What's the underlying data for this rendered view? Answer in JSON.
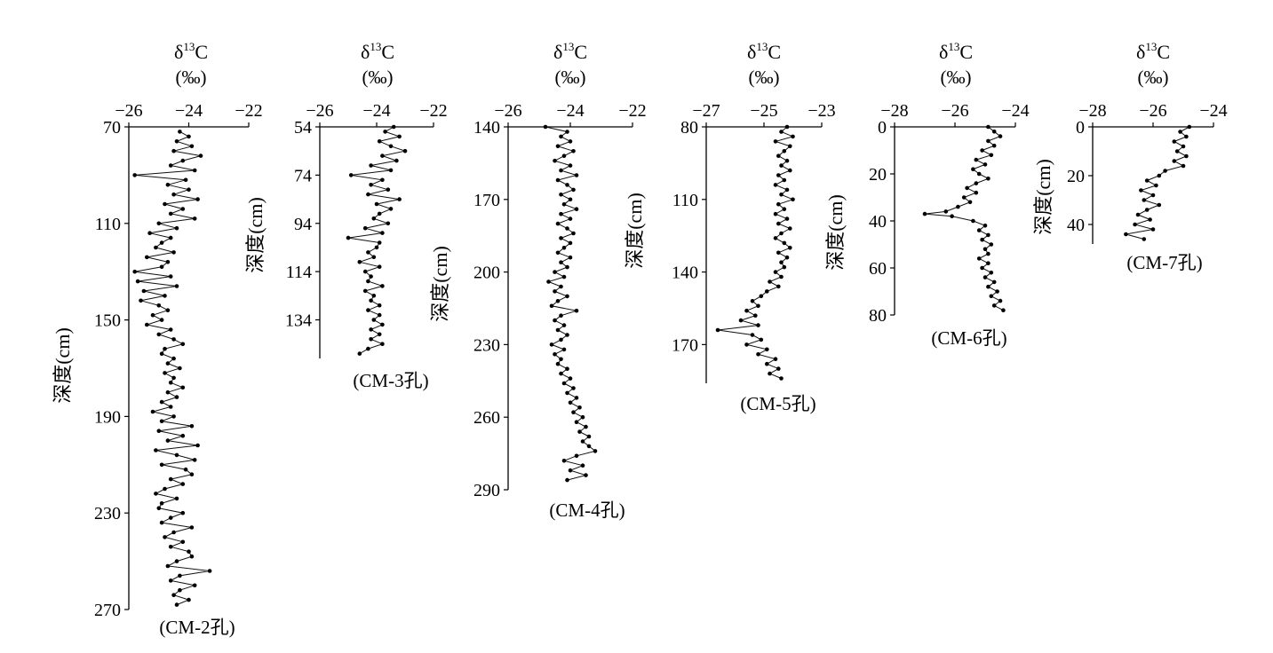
{
  "chart_data": [
    {
      "type": "line",
      "title": "δ13C",
      "unit": "(‰)",
      "ylabel": "深度(cm)",
      "caption": "(CM-2孔)",
      "x_ticks": [
        -26,
        -24,
        -22
      ],
      "y_ticks": [
        70,
        110,
        150,
        190,
        230,
        270
      ],
      "xlim": [
        -26,
        -22
      ],
      "ylim": [
        70,
        270
      ],
      "depth": [
        72,
        74,
        76,
        78,
        80,
        82,
        84,
        86,
        88,
        90,
        92,
        94,
        96,
        98,
        100,
        102,
        104,
        106,
        108,
        110,
        112,
        114,
        116,
        118,
        120,
        122,
        124,
        126,
        128,
        130,
        132,
        134,
        136,
        138,
        140,
        142,
        144,
        146,
        148,
        150,
        152,
        154,
        156,
        158,
        160,
        162,
        164,
        166,
        168,
        170,
        172,
        174,
        176,
        178,
        180,
        182,
        184,
        186,
        188,
        190,
        192,
        194,
        196,
        198,
        200,
        202,
        204,
        206,
        208,
        210,
        212,
        214,
        216,
        218,
        220,
        222,
        224,
        226,
        228,
        230,
        232,
        234,
        236,
        238,
        240,
        242,
        244,
        246,
        248,
        250,
        252,
        254,
        256,
        258,
        260,
        262,
        264,
        266,
        268
      ],
      "values": [
        -24.3,
        -24.0,
        -24.4,
        -23.9,
        -24.5,
        -23.6,
        -24.2,
        -24.6,
        -23.8,
        -25.8,
        -24.1,
        -24.7,
        -24.0,
        -24.5,
        -23.7,
        -24.8,
        -24.2,
        -24.6,
        -23.8,
        -25.0,
        -24.4,
        -25.3,
        -24.6,
        -24.9,
        -25.1,
        -24.5,
        -25.4,
        -24.7,
        -24.9,
        -25.8,
        -24.6,
        -25.7,
        -24.4,
        -25.5,
        -24.8,
        -25.6,
        -25.0,
        -24.7,
        -25.2,
        -24.9,
        -25.4,
        -24.6,
        -25.0,
        -24.5,
        -24.2,
        -24.8,
        -24.9,
        -24.5,
        -24.7,
        -24.3,
        -24.8,
        -24.5,
        -24.6,
        -24.2,
        -24.7,
        -24.4,
        -24.9,
        -24.6,
        -25.2,
        -24.5,
        -24.9,
        -23.9,
        -25.0,
        -24.2,
        -24.7,
        -23.7,
        -25.1,
        -24.4,
        -23.8,
        -24.9,
        -24.1,
        -23.9,
        -24.6,
        -24.2,
        -24.8,
        -25.1,
        -24.4,
        -24.9,
        -25.0,
        -24.2,
        -24.6,
        -24.9,
        -23.9,
        -24.5,
        -24.8,
        -24.2,
        -24.6,
        -24.0,
        -23.9,
        -24.4,
        -24.7,
        -23.3,
        -24.3,
        -24.6,
        -23.8,
        -24.3,
        -24.5,
        -24.0,
        -24.4
      ]
    },
    {
      "type": "line",
      "title": "δ13C",
      "unit": "(‰)",
      "ylabel": "深度(cm)",
      "caption": "(CM-3孔)",
      "x_ticks": [
        -26,
        -24,
        -22
      ],
      "y_ticks": [
        54,
        74,
        94,
        114,
        134
      ],
      "xlim": [
        -26,
        -22
      ],
      "ylim": [
        54,
        150
      ],
      "depth": [
        54,
        56,
        58,
        60,
        62,
        64,
        66,
        68,
        70,
        72,
        74,
        76,
        78,
        80,
        82,
        84,
        86,
        88,
        90,
        92,
        94,
        96,
        98,
        100,
        102,
        104,
        106,
        108,
        110,
        112,
        114,
        116,
        118,
        120,
        122,
        124,
        126,
        128,
        130,
        132,
        134,
        136,
        138,
        140,
        142,
        144,
        146,
        148
      ],
      "values": [
        -23.4,
        -23.7,
        -23.2,
        -23.9,
        -23.5,
        -23.0,
        -23.8,
        -23.3,
        -24.2,
        -23.5,
        -24.9,
        -23.8,
        -24.2,
        -23.6,
        -24.3,
        -23.2,
        -24.0,
        -23.5,
        -23.9,
        -24.1,
        -23.6,
        -24.4,
        -23.8,
        -25.0,
        -23.9,
        -24.0,
        -24.3,
        -24.1,
        -24.6,
        -23.9,
        -24.4,
        -24.2,
        -24.3,
        -23.8,
        -24.4,
        -24.1,
        -24.2,
        -23.9,
        -24.3,
        -23.9,
        -24.1,
        -23.8,
        -24.2,
        -23.9,
        -24.2,
        -23.8,
        -24.3,
        -24.6
      ]
    },
    {
      "type": "line",
      "title": "δ13C",
      "unit": "(‰)",
      "ylabel": "深度(cm)",
      "caption": "(CM-4孔)",
      "x_ticks": [
        -26,
        -24,
        -22
      ],
      "y_ticks": [
        140,
        170,
        200,
        230,
        260,
        290
      ],
      "xlim": [
        -26,
        -22
      ],
      "ylim": [
        140,
        290
      ],
      "depth": [
        140,
        142,
        144,
        146,
        148,
        150,
        152,
        154,
        156,
        158,
        160,
        162,
        164,
        166,
        168,
        170,
        172,
        174,
        176,
        178,
        180,
        182,
        184,
        186,
        188,
        190,
        192,
        194,
        196,
        198,
        200,
        202,
        204,
        206,
        208,
        210,
        212,
        214,
        216,
        218,
        220,
        222,
        224,
        226,
        228,
        230,
        232,
        234,
        236,
        238,
        240,
        242,
        244,
        246,
        248,
        250,
        252,
        254,
        256,
        258,
        260,
        262,
        264,
        266,
        268,
        270,
        272,
        274,
        276,
        278,
        280,
        282,
        284,
        286
      ],
      "values": [
        -24.8,
        -24.1,
        -24.3,
        -24.0,
        -24.4,
        -23.9,
        -24.2,
        -24.5,
        -24.0,
        -24.3,
        -23.8,
        -24.4,
        -24.1,
        -23.9,
        -24.3,
        -24.0,
        -24.2,
        -23.8,
        -24.3,
        -24.0,
        -24.4,
        -24.1,
        -23.9,
        -24.3,
        -24.0,
        -24.2,
        -24.4,
        -24.0,
        -24.3,
        -24.1,
        -24.5,
        -24.2,
        -24.7,
        -24.3,
        -24.5,
        -24.1,
        -24.4,
        -24.6,
        -23.8,
        -24.3,
        -24.5,
        -24.2,
        -24.4,
        -24.1,
        -24.3,
        -24.6,
        -24.2,
        -24.5,
        -24.3,
        -24.4,
        -24.1,
        -24.3,
        -24.0,
        -24.2,
        -23.9,
        -24.1,
        -23.8,
        -24.0,
        -23.7,
        -23.9,
        -23.6,
        -23.8,
        -23.5,
        -23.7,
        -23.4,
        -23.6,
        -23.4,
        -23.2,
        -23.8,
        -24.2,
        -23.6,
        -24.0,
        -23.5,
        -24.1
      ]
    },
    {
      "type": "line",
      "title": "δ13C",
      "unit": "(‰)",
      "ylabel": "深度(cm)",
      "caption": "(CM-5孔)",
      "x_ticks": [
        -27,
        -25,
        -23
      ],
      "y_ticks": [
        80,
        110,
        140,
        170
      ],
      "xlim": [
        -27,
        -23
      ],
      "ylim": [
        80,
        186
      ],
      "depth": [
        80,
        82,
        84,
        86,
        88,
        90,
        92,
        94,
        96,
        98,
        100,
        102,
        104,
        106,
        108,
        110,
        112,
        114,
        116,
        118,
        120,
        122,
        124,
        126,
        128,
        130,
        132,
        134,
        136,
        138,
        140,
        142,
        144,
        146,
        148,
        150,
        152,
        154,
        156,
        158,
        160,
        162,
        164,
        166,
        168,
        170,
        172,
        174,
        176,
        178,
        180,
        182,
        184
      ],
      "values": [
        -24.2,
        -24.4,
        -24.0,
        -24.6,
        -24.1,
        -24.3,
        -24.5,
        -24.2,
        -24.4,
        -24.1,
        -24.5,
        -24.3,
        -24.6,
        -24.2,
        -24.4,
        -24.0,
        -24.5,
        -24.3,
        -24.6,
        -24.2,
        -24.5,
        -24.1,
        -24.4,
        -24.6,
        -24.3,
        -24.1,
        -24.5,
        -24.2,
        -24.4,
        -24.3,
        -24.6,
        -24.4,
        -24.8,
        -24.5,
        -24.9,
        -25.1,
        -25.4,
        -25.2,
        -25.6,
        -25.3,
        -25.8,
        -25.2,
        -26.6,
        -25.4,
        -25.1,
        -25.6,
        -24.9,
        -25.2,
        -24.6,
        -24.9,
        -24.5,
        -24.8,
        -24.4
      ]
    },
    {
      "type": "line",
      "title": "δ13C",
      "unit": "(‰)",
      "ylabel": "深度(cm)",
      "caption": "(CM-6孔)",
      "x_ticks": [
        -28,
        -26,
        -24
      ],
      "y_ticks": [
        0,
        20,
        40,
        60,
        80
      ],
      "xlim": [
        -28,
        -24
      ],
      "ylim": [
        0,
        80
      ],
      "depth": [
        0,
        2,
        4,
        6,
        8,
        10,
        12,
        14,
        16,
        18,
        20,
        22,
        24,
        26,
        28,
        30,
        32,
        34,
        36,
        37,
        38,
        40,
        42,
        44,
        46,
        48,
        50,
        52,
        54,
        56,
        58,
        60,
        62,
        64,
        66,
        68,
        70,
        72,
        74,
        76,
        78
      ],
      "values": [
        -24.9,
        -24.7,
        -24.5,
        -24.9,
        -24.7,
        -25.1,
        -24.8,
        -25.3,
        -25.0,
        -25.4,
        -25.2,
        -24.9,
        -25.3,
        -25.6,
        -25.3,
        -25.7,
        -25.5,
        -25.9,
        -26.3,
        -27.0,
        -26.1,
        -25.4,
        -25.0,
        -25.2,
        -24.9,
        -25.1,
        -24.8,
        -25.0,
        -24.9,
        -25.2,
        -24.9,
        -25.1,
        -24.8,
        -25.0,
        -24.7,
        -24.9,
        -24.6,
        -24.8,
        -24.5,
        -24.7,
        -24.4
      ]
    },
    {
      "type": "line",
      "title": "δ13C",
      "unit": "(‰)",
      "ylabel": "深度(cm)",
      "caption": "(CM-7孔)",
      "x_ticks": [
        -28,
        -26,
        -24
      ],
      "y_ticks": [
        0,
        20,
        40
      ],
      "xlim": [
        -28,
        -24
      ],
      "ylim": [
        0,
        48
      ],
      "depth": [
        0,
        2,
        4,
        6,
        8,
        10,
        12,
        14,
        16,
        18,
        20,
        22,
        24,
        26,
        28,
        30,
        32,
        34,
        36,
        38,
        40,
        42,
        44,
        46
      ],
      "values": [
        -24.8,
        -25.1,
        -24.9,
        -25.3,
        -25.0,
        -25.2,
        -24.9,
        -25.3,
        -25.0,
        -25.6,
        -25.8,
        -26.2,
        -25.9,
        -26.4,
        -26.0,
        -26.3,
        -25.8,
        -26.2,
        -26.5,
        -26.1,
        -26.6,
        -26.0,
        -26.9,
        -26.3
      ]
    }
  ]
}
